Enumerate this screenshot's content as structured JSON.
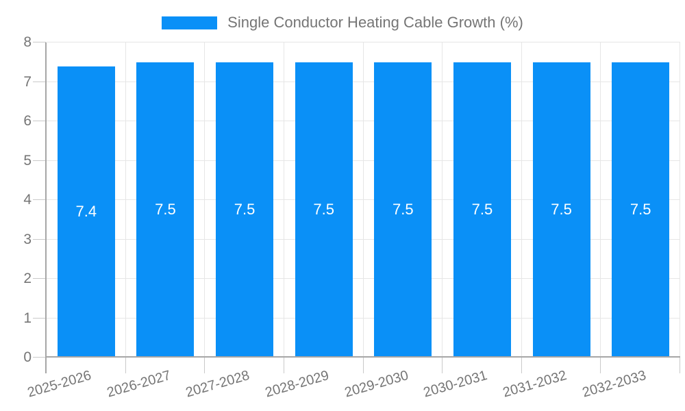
{
  "chart_data": {
    "type": "bar",
    "title": "",
    "legend": "Single Conductor Heating Cable Growth (%)",
    "legend_position": "top",
    "categories": [
      "2025-2026",
      "2026-2027",
      "2027-2028",
      "2028-2029",
      "2029-2030",
      "2030-2031",
      "2031-2032",
      "2032-2033"
    ],
    "values": [
      7.4,
      7.5,
      7.5,
      7.5,
      7.5,
      7.5,
      7.5,
      7.5
    ],
    "value_labels": [
      "7.4",
      "7.5",
      "7.5",
      "7.5",
      "7.5",
      "7.5",
      "7.5",
      "7.5"
    ],
    "xlabel": "",
    "ylabel": "",
    "ylim": [
      0,
      8
    ],
    "yticks": [
      0,
      1,
      2,
      3,
      4,
      5,
      6,
      7,
      8
    ],
    "grid": true,
    "colors": {
      "bar": "#0a90f7",
      "grid": "#e6e6e6",
      "axis_line": "#a6a6a6",
      "tick": "#c9c9c9",
      "axis_text": "#757575",
      "value_label": "#ffffff",
      "background": "#ffffff"
    }
  }
}
